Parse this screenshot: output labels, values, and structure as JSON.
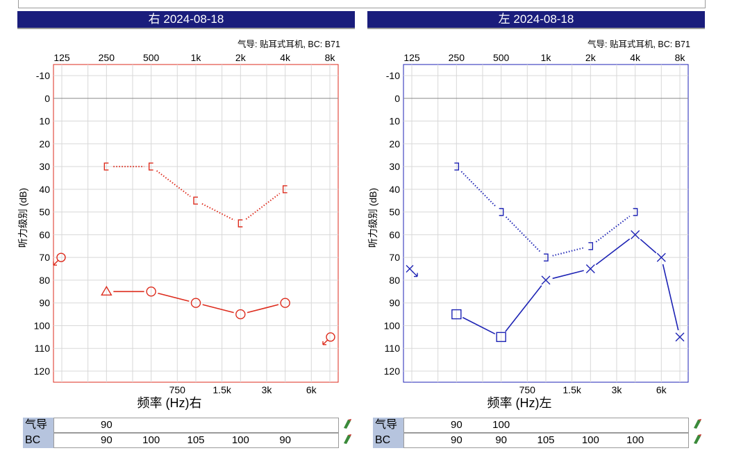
{
  "panels": [
    {
      "id": "right",
      "title": "右 2024-08-18",
      "ac_label": "气导: 贴耳式耳机, BC: B71",
      "xlabel": "频率 (Hz)右",
      "ylabel": "听力级别 (dB)",
      "color": "#dd2b1c"
    },
    {
      "id": "left",
      "title": "左 2024-08-18",
      "ac_label": "气导: 贴耳式耳机, BC: B71",
      "xlabel": "频率 (Hz)左",
      "ylabel": "听力级别 (dB)",
      "color": "#1c22b4"
    }
  ],
  "tables": [
    {
      "panel": "right",
      "rows": [
        {
          "label": "气导",
          "values": [
            {
              "freq": 250,
              "text": "90"
            }
          ]
        },
        {
          "label": "BC",
          "values": [
            {
              "freq": 250,
              "text": "90"
            },
            {
              "freq": 500,
              "text": "100"
            },
            {
              "freq": 1000,
              "text": "105"
            },
            {
              "freq": 2000,
              "text": "100"
            },
            {
              "freq": 4000,
              "text": "90"
            }
          ]
        }
      ]
    },
    {
      "panel": "left",
      "rows": [
        {
          "label": "气导",
          "values": [
            {
              "freq": 250,
              "text": "90"
            },
            {
              "freq": 500,
              "text": "100"
            }
          ]
        },
        {
          "label": "BC",
          "values": [
            {
              "freq": 250,
              "text": "90"
            },
            {
              "freq": 500,
              "text": "90"
            },
            {
              "freq": 1000,
              "text": "105"
            },
            {
              "freq": 2000,
              "text": "100"
            },
            {
              "freq": 4000,
              "text": "100"
            }
          ]
        }
      ]
    }
  ],
  "chart_data": [
    {
      "type": "line",
      "panel": "right",
      "title": "右 2024-08-18",
      "xlabel": "频率 (Hz)右",
      "ylabel": "听力级别 (dB)",
      "x_scale": "log",
      "xlim": [
        125,
        8000
      ],
      "ylim": [
        -10,
        120
      ],
      "y_inverted": true,
      "x_ticks_top": [
        "125",
        "250",
        "500",
        "1k",
        "2k",
        "4k",
        "8k"
      ],
      "x_ticks_bottom": [
        "750",
        "1.5k",
        "3k",
        "6k"
      ],
      "y_ticks": [
        "-10",
        "0",
        "10",
        "20",
        "30",
        "40",
        "50",
        "60",
        "70",
        "80",
        "90",
        "100",
        "110",
        "120"
      ],
      "grid": true,
      "series": [
        {
          "kind": "air",
          "line": "solid",
          "points": [
            {
              "x": 250,
              "y": 85,
              "marker": "triangle"
            },
            {
              "x": 500,
              "y": 85,
              "marker": "circle"
            },
            {
              "x": 1000,
              "y": 90,
              "marker": "circle"
            },
            {
              "x": 2000,
              "y": 95,
              "marker": "circle"
            },
            {
              "x": 4000,
              "y": 90,
              "marker": "circle"
            }
          ]
        },
        {
          "kind": "bone_masked",
          "line": "dotted",
          "points": [
            {
              "x": 250,
              "y": 30,
              "marker": "bracket-right"
            },
            {
              "x": 500,
              "y": 30,
              "marker": "bracket-right"
            },
            {
              "x": 1000,
              "y": 45,
              "marker": "bracket-right"
            },
            {
              "x": 2000,
              "y": 55,
              "marker": "bracket-right"
            },
            {
              "x": 4000,
              "y": 40,
              "marker": "bracket-right"
            }
          ]
        },
        {
          "kind": "no_response",
          "line": "none",
          "points": [
            {
              "x": 125,
              "y": 70,
              "marker": "circle-arrow"
            },
            {
              "x": 8000,
              "y": 105,
              "marker": "circle-arrow"
            }
          ]
        }
      ]
    },
    {
      "type": "line",
      "panel": "left",
      "title": "左 2024-08-18",
      "xlabel": "频率 (Hz)左",
      "ylabel": "听力级别 (dB)",
      "x_scale": "log",
      "xlim": [
        125,
        8000
      ],
      "ylim": [
        -10,
        120
      ],
      "y_inverted": true,
      "x_ticks_top": [
        "125",
        "250",
        "500",
        "1k",
        "2k",
        "4k",
        "8k"
      ],
      "x_ticks_bottom": [
        "750",
        "1.5k",
        "3k",
        "6k"
      ],
      "y_ticks": [
        "-10",
        "0",
        "10",
        "20",
        "30",
        "40",
        "50",
        "60",
        "70",
        "80",
        "90",
        "100",
        "110",
        "120"
      ],
      "grid": true,
      "series": [
        {
          "kind": "air",
          "line": "solid",
          "points": [
            {
              "x": 250,
              "y": 95,
              "marker": "square"
            },
            {
              "x": 500,
              "y": 105,
              "marker": "square"
            },
            {
              "x": 1000,
              "y": 80,
              "marker": "x"
            },
            {
              "x": 2000,
              "y": 75,
              "marker": "x"
            },
            {
              "x": 4000,
              "y": 60,
              "marker": "x"
            },
            {
              "x": 6000,
              "y": 70,
              "marker": "x"
            },
            {
              "x": 8000,
              "y": 105,
              "marker": "x"
            }
          ]
        },
        {
          "kind": "bone_masked",
          "line": "dotted",
          "points": [
            {
              "x": 250,
              "y": 30,
              "marker": "bracket-left"
            },
            {
              "x": 500,
              "y": 50,
              "marker": "bracket-left"
            },
            {
              "x": 1000,
              "y": 70,
              "marker": "bracket-left"
            },
            {
              "x": 2000,
              "y": 65,
              "marker": "bracket-left"
            },
            {
              "x": 4000,
              "y": 50,
              "marker": "bracket-left"
            }
          ]
        },
        {
          "kind": "no_response",
          "line": "none",
          "points": [
            {
              "x": 125,
              "y": 75,
              "marker": "x-arrow"
            }
          ]
        }
      ]
    }
  ]
}
